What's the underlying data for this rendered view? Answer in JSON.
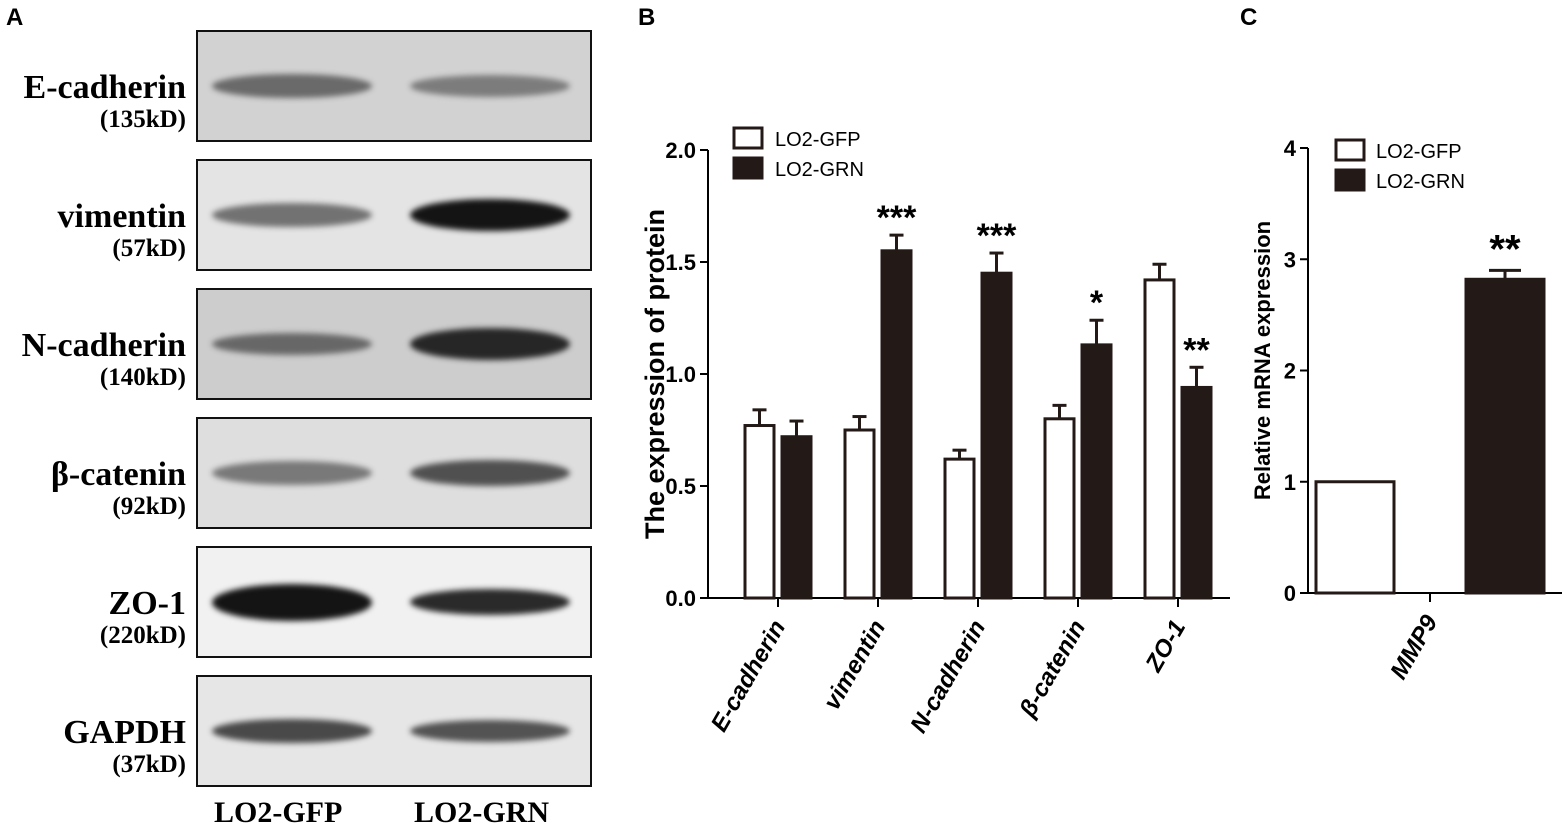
{
  "panels": {
    "a": "A",
    "b": "B",
    "c": "C"
  },
  "blots": {
    "lanes": [
      "LO2-GFP",
      "LO2-GRN"
    ],
    "rows": [
      {
        "name": "E-cadherin",
        "kd": "(135kD)",
        "background": "#d2d2d2",
        "bands": [
          {
            "intensity": 0.55,
            "height": 0.22
          },
          {
            "intensity": 0.45,
            "height": 0.2
          }
        ]
      },
      {
        "name": "vimentin",
        "kd": "(57kD)",
        "background": "#e4e4e4",
        "bands": [
          {
            "intensity": 0.55,
            "height": 0.22
          },
          {
            "intensity": 1.0,
            "height": 0.3
          }
        ]
      },
      {
        "name": "N-cadherin",
        "kd": "(140kD)",
        "background": "#cdcdcd",
        "bands": [
          {
            "intensity": 0.55,
            "height": 0.2
          },
          {
            "intensity": 0.9,
            "height": 0.3
          }
        ]
      },
      {
        "name": "β-catenin",
        "kd": "(92kD)",
        "background": "#dedede",
        "bands": [
          {
            "intensity": 0.5,
            "height": 0.22
          },
          {
            "intensity": 0.7,
            "height": 0.24
          }
        ]
      },
      {
        "name": "ZO-1",
        "kd": "(220kD)",
        "background": "#f1f1f1",
        "bands": [
          {
            "intensity": 1.0,
            "height": 0.34
          },
          {
            "intensity": 0.9,
            "height": 0.24
          }
        ]
      },
      {
        "name": "GAPDH",
        "kd": "(37kD)",
        "background": "#e6e6e6",
        "bands": [
          {
            "intensity": 0.75,
            "height": 0.22
          },
          {
            "intensity": 0.7,
            "height": 0.2
          }
        ]
      }
    ]
  },
  "chart_data": [
    {
      "type": "bar",
      "ylabel": "The expression of protein",
      "ylim": [
        0,
        2.0
      ],
      "yticks": [
        "0.0",
        "0.5",
        "1.0",
        "1.5",
        "2.0"
      ],
      "categories": [
        "E-cadherin",
        "vimentin",
        "N-cadherin",
        "β-catenin",
        "ZO-1"
      ],
      "series": [
        {
          "name": "LO2-GFP",
          "color": "#ffffff",
          "values": [
            0.77,
            0.75,
            0.62,
            0.8,
            1.42
          ],
          "errors": [
            0.07,
            0.06,
            0.04,
            0.06,
            0.07
          ]
        },
        {
          "name": "LO2-GRN",
          "color": "#231a17",
          "values": [
            0.72,
            1.55,
            1.45,
            1.13,
            0.94
          ],
          "errors": [
            0.07,
            0.07,
            0.09,
            0.11,
            0.09
          ]
        }
      ],
      "annotations": [
        "",
        "***",
        "***",
        "*",
        "**"
      ],
      "legend": "top-left"
    },
    {
      "type": "bar",
      "ylabel": "Relative mRNA expression",
      "ylim": [
        0,
        4
      ],
      "yticks": [
        "0",
        "1",
        "2",
        "3",
        "4"
      ],
      "categories": [
        "MMP9"
      ],
      "series": [
        {
          "name": "LO2-GFP",
          "color": "#ffffff",
          "values": [
            1.0
          ],
          "errors": [
            0
          ]
        },
        {
          "name": "LO2-GRN",
          "color": "#231a17",
          "values": [
            2.82
          ],
          "errors": [
            0.08
          ]
        }
      ],
      "annotations": [
        "**"
      ],
      "legend": "top-left"
    }
  ]
}
